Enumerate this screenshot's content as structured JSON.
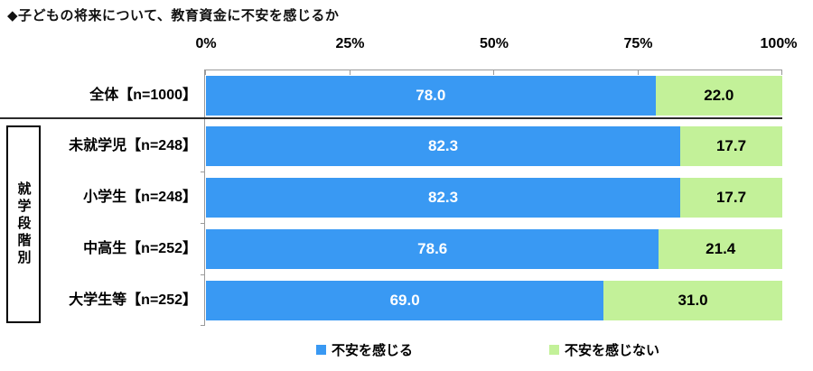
{
  "title": "◆子どもの将来について、教育資金に不安を感じるか",
  "group_label": "就学段階別",
  "colors": {
    "feel_anxiety": "#3999F3",
    "no_anxiety": "#C3F199",
    "value_on_blue": "#FFFFFF",
    "value_on_green": "#000000",
    "separator": "#2B2B2B",
    "axis": "#9A9A9A"
  },
  "axis": {
    "ticks": [
      "0%",
      "25%",
      "50%",
      "75%",
      "100%"
    ]
  },
  "legend": [
    {
      "label": "不安を感じる",
      "color": "#3999F3"
    },
    {
      "label": "不安を感じない",
      "color": "#C3F199"
    }
  ],
  "chart_data": {
    "type": "bar",
    "orientation": "horizontal",
    "stacked": true,
    "title": "◆子どもの将来について、教育資金に不安を感じるか",
    "categories": [
      "全体【n=1000】",
      "未就学児【n=248】",
      "小学生【n=248】",
      "中高生【n=252】",
      "大学生等【n=252】"
    ],
    "series": [
      {
        "name": "不安を感じる",
        "color": "#3999F3",
        "values": [
          78.0,
          82.3,
          82.3,
          78.6,
          69.0
        ]
      },
      {
        "name": "不安を感じない",
        "color": "#C3F199",
        "values": [
          22.0,
          17.7,
          17.7,
          21.4,
          31.0
        ]
      }
    ],
    "xlim": [
      0,
      100
    ],
    "x_ticks": [
      "0%",
      "25%",
      "50%",
      "75%",
      "100%"
    ],
    "grid": false,
    "legend_position": "bottom",
    "group": {
      "label": "就学段階別",
      "rows": [
        1,
        2,
        3,
        4
      ]
    }
  }
}
